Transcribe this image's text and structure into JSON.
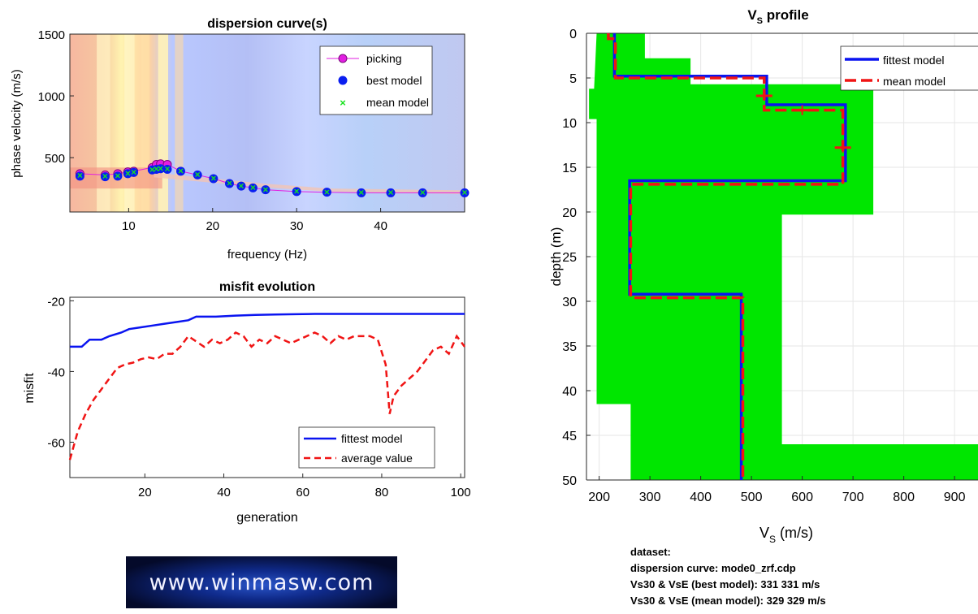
{
  "chart_data": [
    {
      "type": "scatter",
      "title": "dispersion curve(s)",
      "xlabel": "frequency (Hz)",
      "ylabel": "phase velocity (m/s)",
      "xlim": [
        3,
        50
      ],
      "ylim": [
        60,
        1500
      ],
      "xticks": [
        "10",
        "20",
        "30",
        "40"
      ],
      "yticks": [
        "500",
        "1000",
        "1500"
      ],
      "background": "phase velocity spectrum (heatmap)",
      "legend_position": "top-right",
      "series": [
        {
          "name": "picking",
          "color": "#e21ee2",
          "x": [
            4.2,
            7.2,
            8.7,
            9.9,
            10.6,
            12.8,
            13.3,
            13.8,
            14.6
          ],
          "y": [
            370,
            360,
            370,
            385,
            390,
            420,
            445,
            450,
            445
          ]
        },
        {
          "name": "best model",
          "color": "#0a1ef0",
          "x": [
            4.2,
            7.2,
            8.7,
            9.9,
            10.6,
            12.8,
            13.3,
            13.8,
            14.6,
            16.2,
            18.2,
            20.1,
            22.0,
            23.4,
            24.8,
            26.3,
            30.0,
            33.6,
            37.7,
            41.2,
            45.0,
            50.0
          ],
          "y": [
            350,
            345,
            350,
            370,
            380,
            400,
            405,
            410,
            405,
            390,
            360,
            330,
            290,
            270,
            255,
            240,
            225,
            220,
            215,
            215,
            215,
            215
          ]
        },
        {
          "name": "mean model",
          "color": "#18e21e",
          "x": [
            4.2,
            7.2,
            8.7,
            9.9,
            10.6,
            12.8,
            13.3,
            13.8,
            14.6,
            16.2,
            18.2,
            20.1,
            22.0,
            23.4,
            24.8,
            26.3,
            30.0,
            33.6,
            37.7,
            41.2,
            45.0,
            50.0
          ],
          "y": [
            355,
            348,
            352,
            372,
            382,
            402,
            407,
            412,
            407,
            392,
            362,
            332,
            292,
            272,
            257,
            242,
            227,
            222,
            217,
            217,
            217,
            217
          ]
        }
      ]
    },
    {
      "type": "line",
      "title": "misfit evolution",
      "xlabel": "generation",
      "ylabel": "misfit",
      "xlim": [
        1,
        101
      ],
      "ylim": [
        -70,
        -19
      ],
      "xticks": [
        "20",
        "40",
        "60",
        "80",
        "100"
      ],
      "yticks": [
        "-20",
        "-40",
        "-60"
      ],
      "legend_position": "bottom-right",
      "series": [
        {
          "name": "fittest model",
          "color": "#0a14f0",
          "style": "solid",
          "x": [
            1,
            4,
            6,
            9,
            11,
            14,
            16,
            19,
            22,
            25,
            28,
            31,
            33,
            38,
            43,
            48,
            53,
            58,
            63,
            101
          ],
          "y": [
            -33,
            -33,
            -31,
            -31,
            -30,
            -29,
            -28,
            -27.5,
            -27,
            -26.5,
            -26,
            -25.5,
            -24.5,
            -24.5,
            -24.2,
            -24,
            -23.9,
            -23.8,
            -23.7,
            -23.7
          ]
        },
        {
          "name": "average value",
          "color": "#f01414",
          "style": "dashed",
          "x": [
            1,
            3,
            5,
            7,
            9,
            11,
            13,
            15,
            17,
            19,
            21,
            23,
            25,
            27,
            29,
            31,
            33,
            35,
            37,
            39,
            41,
            43,
            45,
            47,
            49,
            51,
            53,
            55,
            57,
            59,
            61,
            63,
            65,
            67,
            69,
            71,
            73,
            75,
            77,
            79,
            81,
            82,
            83,
            85,
            87,
            89,
            91,
            93,
            95,
            97,
            99,
            101
          ],
          "y": [
            -65,
            -57,
            -52,
            -48,
            -45,
            -42,
            -39,
            -38,
            -37.5,
            -36.5,
            -36,
            -36.5,
            -35,
            -35,
            -33,
            -30,
            -31.5,
            -33,
            -31,
            -32,
            -31,
            -29,
            -30,
            -33,
            -31,
            -32,
            -30,
            -31,
            -32,
            -31,
            -30,
            -29,
            -30,
            -32,
            -30,
            -31,
            -30,
            -30,
            -30,
            -31,
            -38,
            -52,
            -47,
            -44,
            -42,
            -40,
            -37,
            -34,
            -33,
            -35,
            -30,
            -33
          ]
        }
      ]
    },
    {
      "type": "line",
      "title_main": "V",
      "title_sub": "S",
      "title_rest": " profile",
      "xlabel_main": "V",
      "xlabel_sub": "S",
      "xlabel_rest": " (m/s)",
      "ylabel": "depth (m)",
      "xlim": [
        175,
        975
      ],
      "ylim": [
        0,
        50
      ],
      "xticks": [
        "200",
        "300",
        "400",
        "500",
        "600",
        "700",
        "800",
        "900"
      ],
      "yticks": [
        "0",
        "5",
        "10",
        "15",
        "20",
        "25",
        "30",
        "35",
        "40",
        "45",
        "50"
      ],
      "legend_position": "top-right",
      "uncertainty_color": "#00e600",
      "series": [
        {
          "name": "fittest model",
          "color": "#0a14f0",
          "style": "solid",
          "vs": [
            230,
            530,
            685,
            260,
            480
          ],
          "depth_top": [
            0,
            4.8,
            8.0,
            16.5,
            29.2
          ],
          "depth_bottom": [
            4.8,
            8.0,
            16.5,
            29.2,
            50
          ]
        },
        {
          "name": "mean model",
          "color": "#f01414",
          "style": "dashed",
          "vs": [
            218,
            232,
            525,
            680,
            262,
            483
          ],
          "depth_top": [
            0,
            0.6,
            5.0,
            8.6,
            16.9,
            29.6
          ],
          "depth_bottom": [
            0.6,
            5.0,
            8.6,
            16.9,
            29.6,
            50
          ]
        }
      ]
    }
  ],
  "info": {
    "line1": "dataset:",
    "line2": "dispersion curve: mode0_zrf.cdp",
    "line3": "Vs30 & VsE (best model): 331  331 m/s",
    "line4": "Vs30 & VsE (mean model): 329  329 m/s"
  },
  "logo_text": "www.winmasw.com"
}
